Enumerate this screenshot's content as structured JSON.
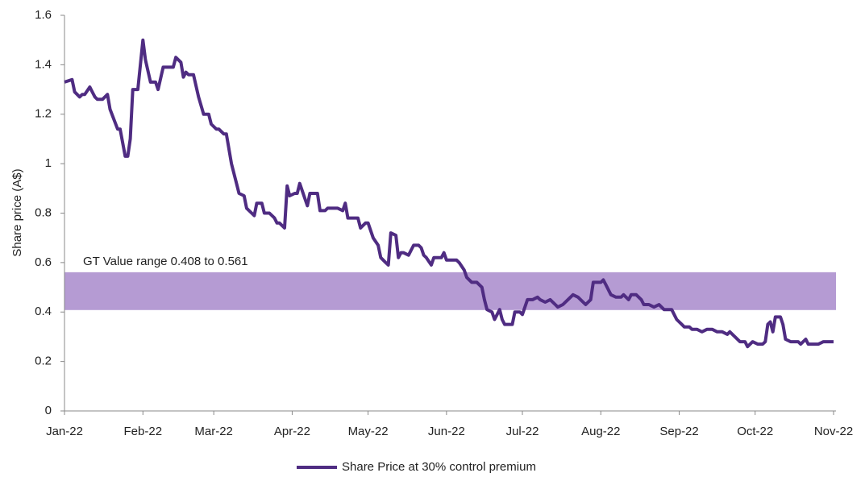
{
  "chart_data": {
    "type": "line",
    "y_label": "Share price (A$)",
    "annotation": "GT Value range 0.408  to 0.561",
    "band": [
      0.408,
      0.561
    ],
    "band_color": "#b59bd3",
    "xlim": [
      0,
      304
    ],
    "xticks": [
      {
        "value": 0,
        "label": "Jan-22"
      },
      {
        "value": 31,
        "label": "Feb-22"
      },
      {
        "value": 59,
        "label": "Mar-22"
      },
      {
        "value": 90,
        "label": "Apr-22"
      },
      {
        "value": 120,
        "label": "May-22"
      },
      {
        "value": 151,
        "label": "Jun-22"
      },
      {
        "value": 181,
        "label": "Jul-22"
      },
      {
        "value": 212,
        "label": "Aug-22"
      },
      {
        "value": 243,
        "label": "Sep-22"
      },
      {
        "value": 273,
        "label": "Oct-22"
      },
      {
        "value": 304,
        "label": "Nov-22"
      }
    ],
    "ylim": [
      0,
      1.6
    ],
    "yticks": [
      0,
      0.2,
      0.4,
      0.6,
      0.8,
      1,
      1.2,
      1.4,
      1.6
    ],
    "legend": "bottom",
    "series": [
      {
        "name": "Share Price at 30% control premium",
        "color": "#4f2c82",
        "x": [
          0,
          3,
          4,
          6,
          7,
          8,
          10,
          11,
          12,
          13,
          15,
          17,
          18,
          21,
          22,
          24,
          25,
          26,
          27,
          29,
          31,
          32,
          34,
          36,
          37,
          39,
          41,
          43,
          44,
          46,
          47,
          48,
          49,
          51,
          53,
          55,
          57,
          58,
          60,
          61,
          63,
          64,
          66,
          68,
          69,
          71,
          72,
          74,
          75,
          76,
          78,
          79,
          81,
          83,
          84,
          85,
          87,
          88,
          89,
          91,
          92,
          93,
          95,
          96,
          97,
          100,
          101,
          103,
          104,
          108,
          110,
          111,
          112,
          116,
          117,
          119,
          120,
          122,
          124,
          125,
          127,
          128,
          129,
          131,
          132,
          133,
          134,
          136,
          138,
          140,
          141,
          142,
          143,
          145,
          146,
          149,
          150,
          151,
          152,
          155,
          156,
          158,
          159,
          161,
          163,
          165,
          166,
          167,
          169,
          170,
          172,
          173,
          174,
          177,
          178,
          180,
          181,
          183,
          185,
          187,
          188,
          190,
          192,
          194,
          195,
          197,
          199,
          201,
          203,
          204,
          206,
          208,
          209,
          212,
          213,
          214,
          216,
          218,
          220,
          221,
          223,
          224,
          226,
          228,
          229,
          231,
          233,
          235,
          237,
          240,
          242,
          244,
          245,
          247,
          248,
          250,
          252,
          254,
          256,
          258,
          260,
          262,
          263,
          265,
          267,
          269,
          270,
          272,
          274,
          276,
          277,
          278,
          279,
          280,
          281,
          283,
          284,
          285,
          287,
          290,
          291,
          293,
          294,
          297,
          298,
          300,
          304
        ],
        "values": [
          1.33,
          1.34,
          1.29,
          1.27,
          1.28,
          1.28,
          1.31,
          1.29,
          1.27,
          1.26,
          1.26,
          1.28,
          1.22,
          1.14,
          1.14,
          1.03,
          1.03,
          1.1,
          1.3,
          1.3,
          1.5,
          1.42,
          1.33,
          1.33,
          1.3,
          1.39,
          1.39,
          1.39,
          1.43,
          1.41,
          1.35,
          1.37,
          1.36,
          1.36,
          1.27,
          1.2,
          1.2,
          1.16,
          1.14,
          1.14,
          1.12,
          1.12,
          1.0,
          0.92,
          0.88,
          0.87,
          0.82,
          0.8,
          0.79,
          0.84,
          0.84,
          0.8,
          0.8,
          0.78,
          0.76,
          0.76,
          0.74,
          0.91,
          0.87,
          0.88,
          0.88,
          0.92,
          0.86,
          0.83,
          0.88,
          0.88,
          0.81,
          0.81,
          0.82,
          0.82,
          0.81,
          0.84,
          0.78,
          0.78,
          0.74,
          0.76,
          0.76,
          0.7,
          0.67,
          0.62,
          0.6,
          0.59,
          0.72,
          0.71,
          0.62,
          0.64,
          0.64,
          0.63,
          0.67,
          0.67,
          0.66,
          0.63,
          0.62,
          0.59,
          0.62,
          0.62,
          0.64,
          0.61,
          0.61,
          0.61,
          0.6,
          0.57,
          0.54,
          0.52,
          0.52,
          0.5,
          0.45,
          0.41,
          0.4,
          0.37,
          0.41,
          0.37,
          0.35,
          0.35,
          0.4,
          0.4,
          0.39,
          0.45,
          0.45,
          0.46,
          0.45,
          0.44,
          0.45,
          0.43,
          0.42,
          0.43,
          0.45,
          0.47,
          0.46,
          0.45,
          0.43,
          0.45,
          0.52,
          0.52,
          0.53,
          0.51,
          0.47,
          0.46,
          0.46,
          0.47,
          0.45,
          0.47,
          0.47,
          0.45,
          0.43,
          0.43,
          0.42,
          0.43,
          0.41,
          0.41,
          0.37,
          0.35,
          0.34,
          0.34,
          0.33,
          0.33,
          0.32,
          0.33,
          0.33,
          0.32,
          0.32,
          0.31,
          0.32,
          0.3,
          0.28,
          0.28,
          0.26,
          0.28,
          0.27,
          0.27,
          0.28,
          0.35,
          0.36,
          0.32,
          0.38,
          0.38,
          0.35,
          0.29,
          0.28,
          0.28,
          0.27,
          0.29,
          0.27,
          0.27,
          0.27,
          0.28,
          0.28
        ]
      }
    ]
  }
}
